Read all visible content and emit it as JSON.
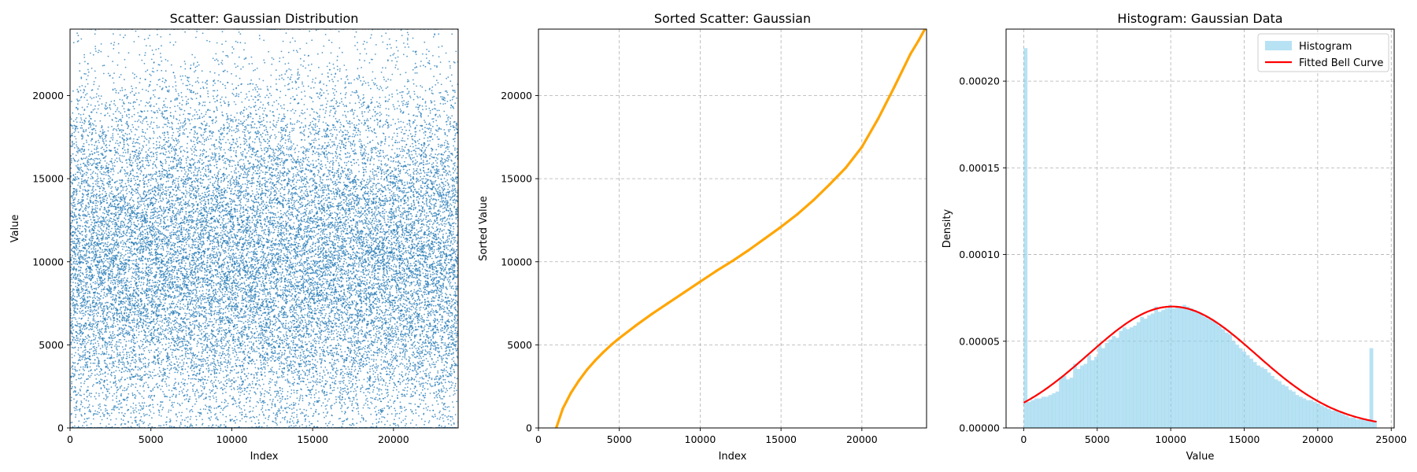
{
  "chart_data": [
    {
      "type": "scatter",
      "title": "Scatter: Gaussian Distribution",
      "xlabel": "Index",
      "ylabel": "Value",
      "xlim": [
        0,
        24000
      ],
      "ylim": [
        0,
        24000
      ],
      "xticks": [
        0,
        5000,
        10000,
        15000,
        20000
      ],
      "yticks": [
        0,
        5000,
        10000,
        15000,
        20000
      ],
      "grid": false,
      "marker_color": "#1f77b4",
      "n_points": 24000,
      "distribution": {
        "mean": 10000,
        "std": 5700,
        "clip": [
          0,
          24000
        ]
      }
    },
    {
      "type": "line",
      "title": "Sorted Scatter: Gaussian",
      "xlabel": "Index",
      "ylabel": "Sorted Value",
      "xlim": [
        0,
        24000
      ],
      "ylim": [
        0,
        24000
      ],
      "xticks": [
        0,
        5000,
        10000,
        15000,
        20000
      ],
      "yticks": [
        0,
        5000,
        10000,
        15000,
        20000
      ],
      "grid": true,
      "line_color": "#ffa500",
      "x": [
        1100,
        1500,
        2000,
        2500,
        3000,
        3500,
        4000,
        4500,
        5000,
        6000,
        7000,
        8000,
        9000,
        10000,
        11000,
        12000,
        13000,
        14000,
        15000,
        16000,
        17000,
        18000,
        19000,
        20000,
        21000,
        22000,
        22500,
        23000,
        23500,
        23900
      ],
      "y": [
        0,
        1150,
        2100,
        2850,
        3500,
        4050,
        4550,
        5000,
        5400,
        6150,
        6850,
        7500,
        8150,
        8800,
        9450,
        10050,
        10700,
        11400,
        12100,
        12850,
        13700,
        14650,
        15650,
        16900,
        18600,
        20500,
        21500,
        22500,
        23300,
        24000
      ]
    },
    {
      "type": "bar",
      "title": "Histogram: Gaussian Data",
      "xlabel": "Value",
      "ylabel": "Density",
      "xlim": [
        -1200,
        25200
      ],
      "ylim": [
        0,
        0.00023
      ],
      "xticks": [
        0,
        5000,
        10000,
        15000,
        20000,
        25000
      ],
      "yticks": [
        0.0,
        5e-05,
        0.0001,
        0.00015,
        0.0002
      ],
      "ytick_labels": [
        "0.00000",
        "0.00005",
        "0.00010",
        "0.00015",
        "0.00020"
      ],
      "grid": true,
      "legend": {
        "placement": "top-right",
        "entries": [
          "Histogram",
          "Fitted Bell Curve"
        ]
      },
      "bar_color": "#87ceeb",
      "curve_color": "#ff0000",
      "bin_width": 240,
      "bin_start": 0,
      "values": [
        0.000219,
        1.5e-05,
        1.6e-05,
        1.7e-05,
        1.7e-05,
        1.8e-05,
        1.8e-05,
        1.9e-05,
        2e-05,
        2.1e-05,
        2.9e-05,
        3e-05,
        2.8e-05,
        2.9e-05,
        3.7e-05,
        3.4e-05,
        3.6e-05,
        3.7e-05,
        4.2e-05,
        3.9e-05,
        4.1e-05,
        4.8e-05,
        4.6e-05,
        4.9e-05,
        5.1e-05,
        5.3e-05,
        5.2e-05,
        5.6e-05,
        5.8e-05,
        5.7e-05,
        5.8e-05,
        5.9e-05,
        6.1e-05,
        6.4e-05,
        6.3e-05,
        6.5e-05,
        6.6e-05,
        7e-05,
        6.7e-05,
        6.8e-05,
        6.9e-05,
        7.1e-05,
        6.9e-05,
        7e-05,
        7e-05,
        7.1e-05,
        7e-05,
        6.9e-05,
        6.8e-05,
        6.7e-05,
        6.6e-05,
        6.4e-05,
        6.3e-05,
        6.2e-05,
        6.1e-05,
        5.9e-05,
        5.7e-05,
        5.5e-05,
        5.4e-05,
        5e-05,
        4.8e-05,
        4.6e-05,
        4.4e-05,
        4.2e-05,
        4e-05,
        3.8e-05,
        3.6e-05,
        3.5e-05,
        3.4e-05,
        3.2e-05,
        3e-05,
        2.8e-05,
        2.7e-05,
        2.5e-05,
        2.4e-05,
        2.2e-05,
        2.1e-05,
        1.9e-05,
        1.8e-05,
        1.7e-05,
        1.6e-05,
        1.6e-05,
        1.5e-05,
        1.4e-05,
        1.3e-05,
        1.2e-05,
        1.1e-05,
        1e-05,
        1e-05,
        9e-06,
        8e-06,
        7e-06,
        6e-06,
        6e-06,
        5e-06,
        5e-06,
        5e-06,
        5e-06,
        4.6e-05,
        4e-06
      ],
      "fit": {
        "mean": 10100,
        "peak_density": 7e-05,
        "sigma": 5700
      }
    }
  ]
}
